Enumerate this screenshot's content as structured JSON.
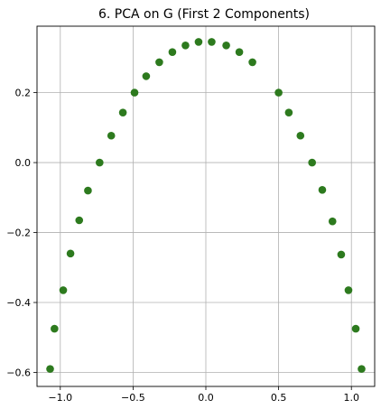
{
  "chart_data": {
    "type": "scatter",
    "title": "6. PCA on G (First 2 Components)",
    "xlabel": "",
    "ylabel": "",
    "xlim": [
      -1.16,
      1.16
    ],
    "ylim": [
      -0.64,
      0.39
    ],
    "x_ticks": [
      -1.0,
      -0.5,
      0.0,
      0.5,
      1.0
    ],
    "x_tick_labels": [
      "−1.0",
      "−0.5",
      "0.0",
      "0.5",
      "1.0"
    ],
    "y_ticks": [
      -0.6,
      -0.4,
      -0.2,
      0.0,
      0.2
    ],
    "y_tick_labels": [
      "−0.6",
      "−0.4",
      "−0.2",
      "0.0",
      "0.2"
    ],
    "grid": true,
    "legend": "none",
    "series": [
      {
        "color": "#2d7a1e",
        "points": [
          {
            "x": -1.07,
            "y": -0.59
          },
          {
            "x": -1.04,
            "y": -0.475
          },
          {
            "x": -0.98,
            "y": -0.365
          },
          {
            "x": -0.93,
            "y": -0.26
          },
          {
            "x": -0.87,
            "y": -0.165
          },
          {
            "x": -0.81,
            "y": -0.08
          },
          {
            "x": -0.73,
            "y": 0.0
          },
          {
            "x": -0.65,
            "y": 0.077
          },
          {
            "x": -0.57,
            "y": 0.143
          },
          {
            "x": -0.49,
            "y": 0.2
          },
          {
            "x": -0.41,
            "y": 0.247
          },
          {
            "x": -0.32,
            "y": 0.287
          },
          {
            "x": -0.23,
            "y": 0.316
          },
          {
            "x": -0.14,
            "y": 0.335
          },
          {
            "x": -0.05,
            "y": 0.345
          },
          {
            "x": 0.04,
            "y": 0.345
          },
          {
            "x": 0.14,
            "y": 0.335
          },
          {
            "x": 0.23,
            "y": 0.316
          },
          {
            "x": 0.32,
            "y": 0.287
          },
          {
            "x": 0.5,
            "y": 0.2
          },
          {
            "x": 0.57,
            "y": 0.143
          },
          {
            "x": 0.65,
            "y": 0.077
          },
          {
            "x": 0.73,
            "y": 0.0
          },
          {
            "x": 0.8,
            "y": -0.078
          },
          {
            "x": 0.87,
            "y": -0.168
          },
          {
            "x": 0.93,
            "y": -0.263
          },
          {
            "x": 0.98,
            "y": -0.365
          },
          {
            "x": 1.03,
            "y": -0.475
          },
          {
            "x": 1.07,
            "y": -0.59
          }
        ]
      }
    ]
  }
}
